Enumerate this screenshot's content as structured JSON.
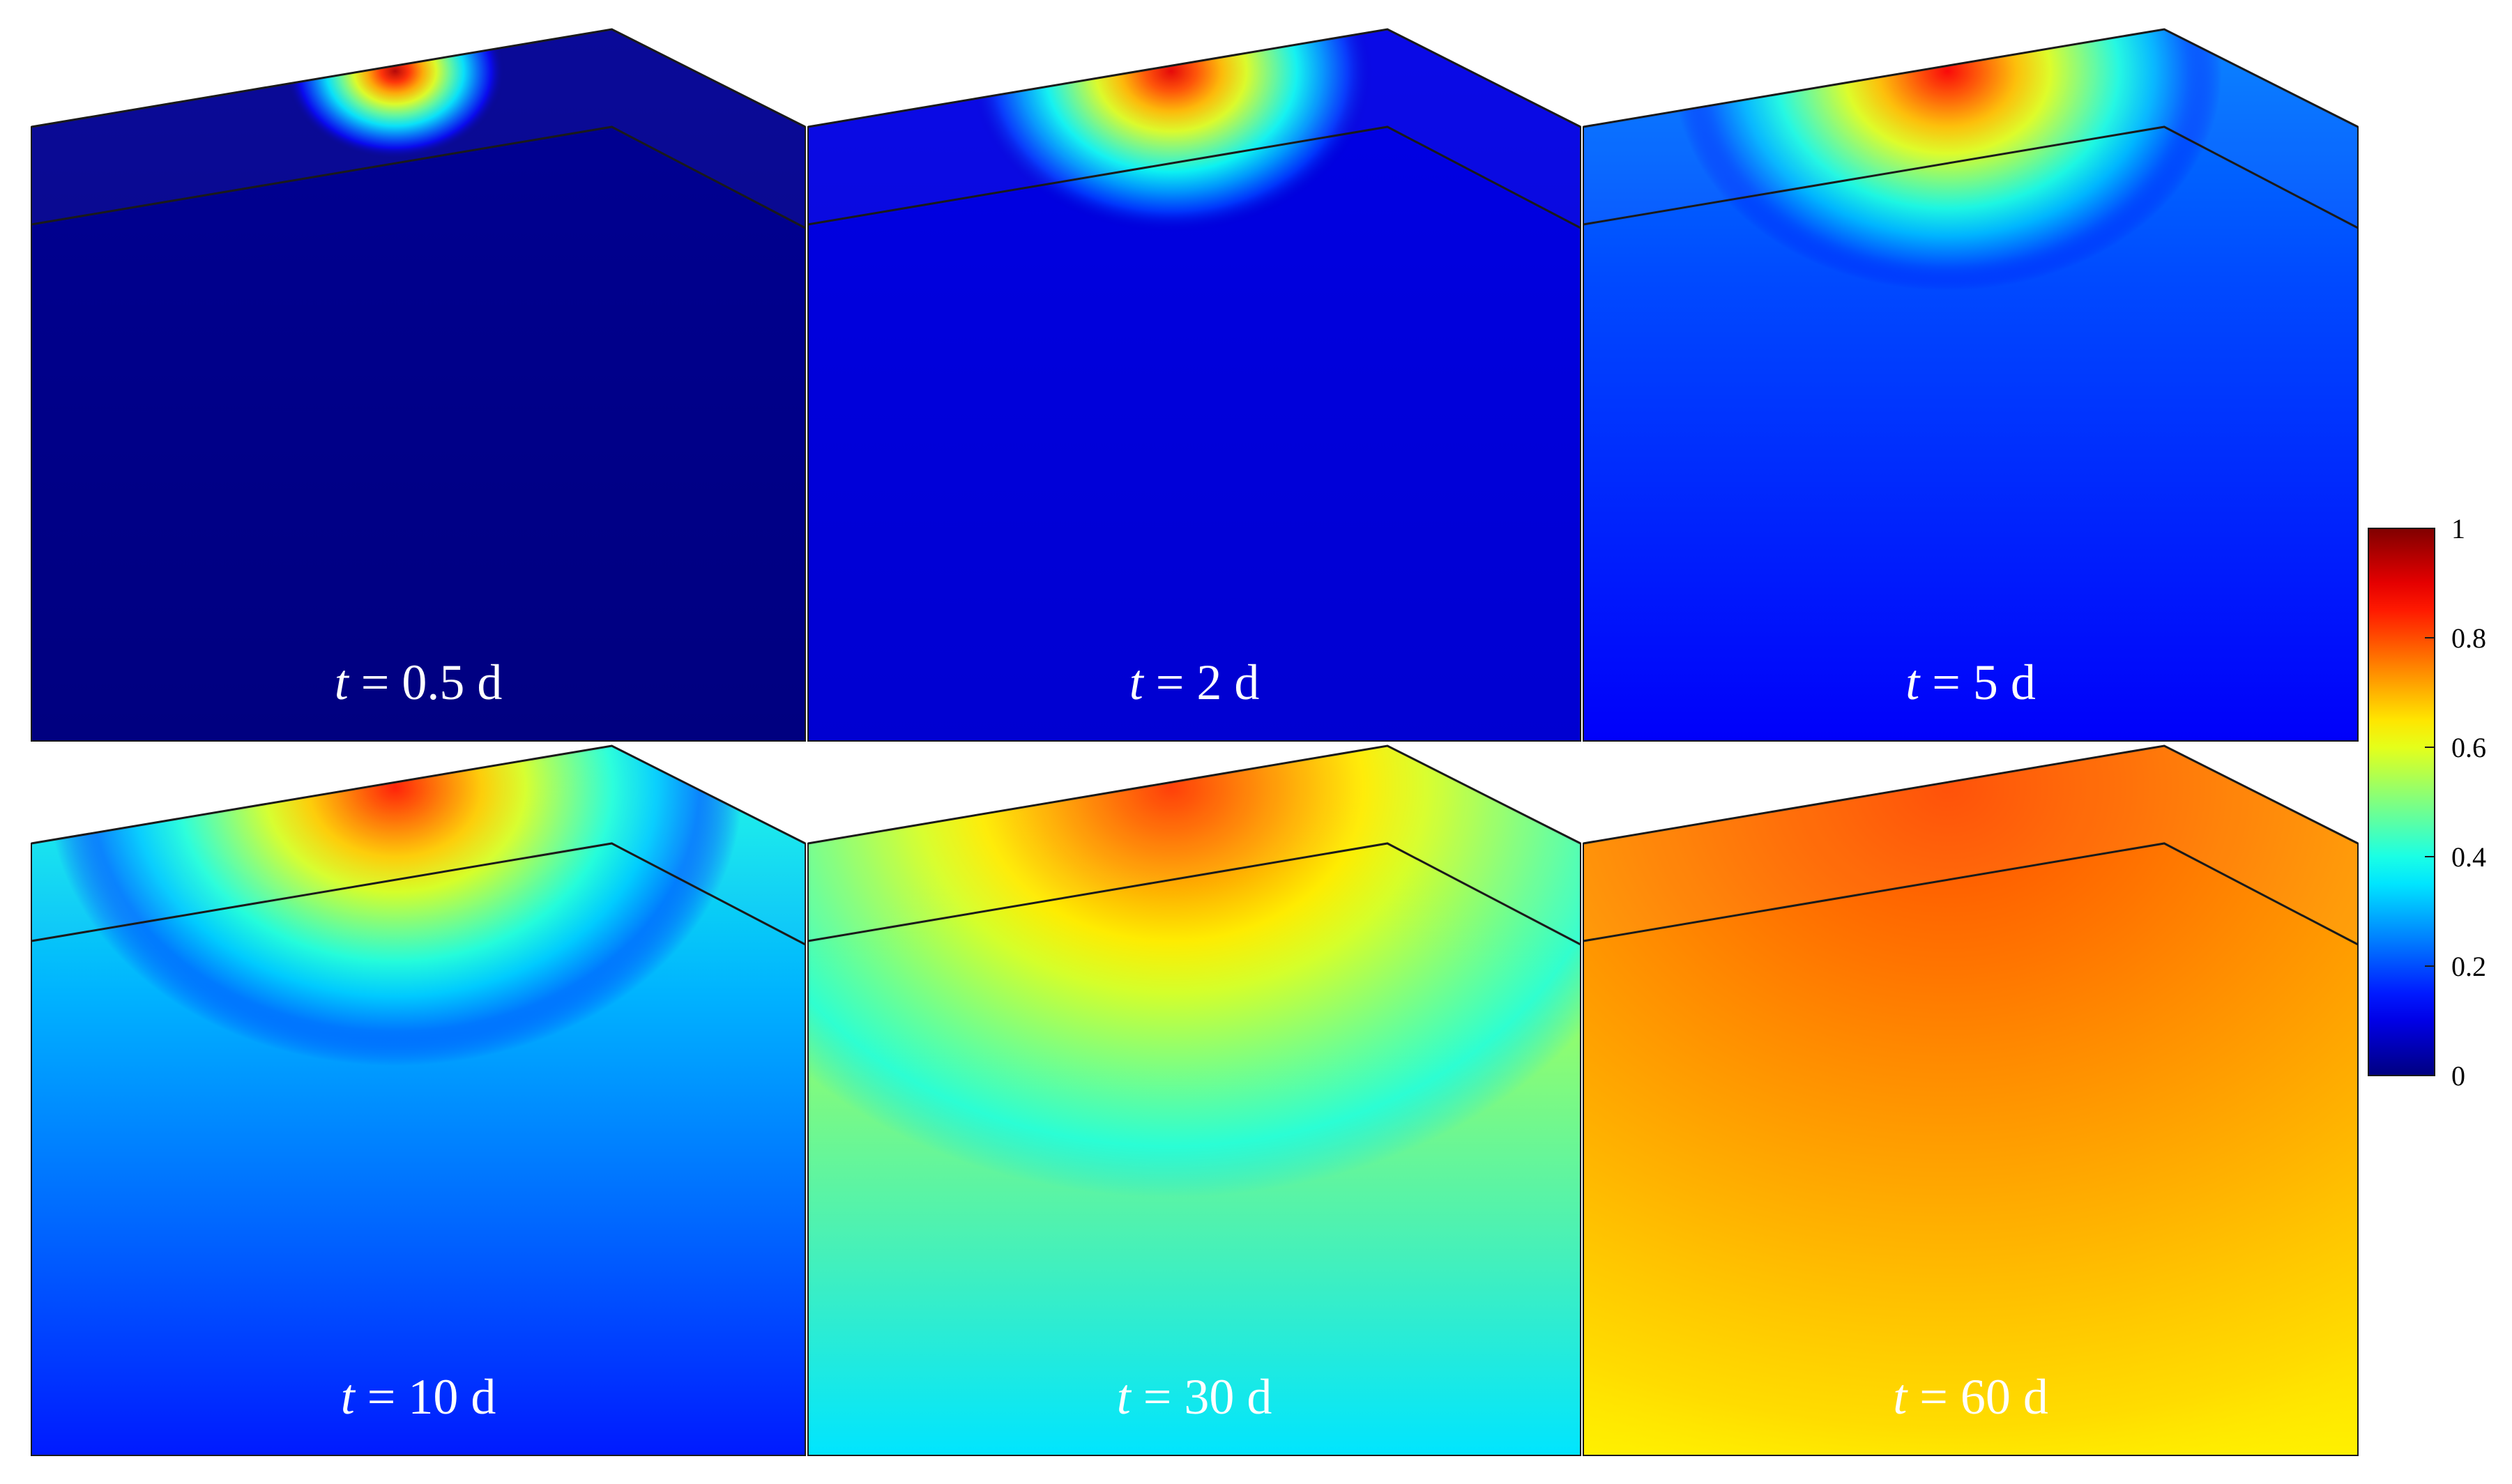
{
  "chart_data": {
    "type": "heatmap",
    "description_type": "3D contour panels (6 time steps)",
    "colormap": "jet",
    "colorbar": {
      "min": 0,
      "max": 1,
      "ticks": [
        0,
        0.2,
        0.4,
        0.6,
        0.8,
        1
      ],
      "tick_labels": [
        "0",
        "0.2",
        "0.4",
        "0.6",
        "0.8",
        "1"
      ],
      "location": "right"
    },
    "panels": [
      {
        "variable": "t",
        "equals": " = ",
        "value": "0.5",
        "unit": "d",
        "surface_peak": 0.95,
        "surface_background": 0.02,
        "plume_spread": 0.3,
        "depth_level": 0.0
      },
      {
        "variable": "t",
        "equals": " = ",
        "value": "2",
        "unit": "d",
        "surface_peak": 0.9,
        "surface_background": 0.1,
        "plume_spread": 0.55,
        "depth_level": 0.08
      },
      {
        "variable": "t",
        "equals": " = ",
        "value": "5",
        "unit": "d",
        "surface_peak": 0.88,
        "surface_background": 0.25,
        "plume_spread": 0.75,
        "depth_level": 0.12
      },
      {
        "variable": "t",
        "equals": " = ",
        "value": "10",
        "unit": "d",
        "surface_peak": 0.85,
        "surface_background": 0.4,
        "plume_spread": 0.95,
        "depth_level": 0.15
      },
      {
        "variable": "t",
        "equals": " = ",
        "value": "30",
        "unit": "d",
        "surface_peak": 0.82,
        "surface_background": 0.65,
        "plume_spread": 1.4,
        "depth_level": 0.35
      },
      {
        "variable": "t",
        "equals": " = ",
        "value": "60",
        "unit": "d",
        "surface_peak": 0.8,
        "surface_background": 0.75,
        "plume_spread": 2.5,
        "depth_level": 0.64
      }
    ]
  }
}
